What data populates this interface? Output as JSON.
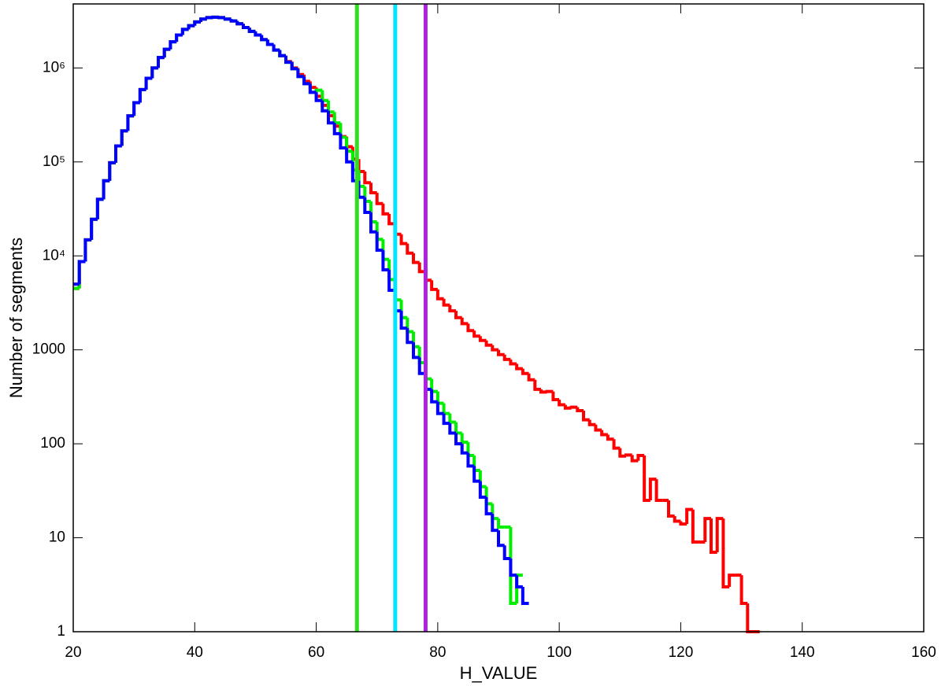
{
  "chart_data": {
    "type": "histogram",
    "x_label": "H_VALUE",
    "y_label": "Number of segments",
    "log_y": true,
    "bins": [
      20,
      21,
      22,
      23,
      24,
      25,
      26,
      27,
      28,
      29,
      30,
      31,
      32,
      33,
      34,
      35,
      36,
      37,
      38,
      39,
      40,
      41,
      42,
      43,
      44,
      45,
      46,
      47,
      48,
      49,
      50,
      51,
      52,
      53,
      54,
      55,
      56,
      57,
      58,
      59,
      60,
      61,
      62,
      63,
      64,
      65,
      66,
      67,
      68,
      69,
      70,
      71,
      72,
      73,
      74,
      75,
      76,
      77,
      78,
      79,
      80,
      81,
      82,
      83,
      84,
      85,
      86,
      87,
      88,
      89,
      90,
      91,
      92,
      93,
      94,
      95,
      96,
      97,
      98,
      99,
      100,
      101,
      102,
      103,
      104,
      105,
      106,
      107,
      108,
      109,
      110,
      111,
      112,
      113,
      114,
      115,
      116,
      117,
      118,
      119,
      120,
      121,
      122,
      123,
      124,
      125,
      126,
      127,
      128,
      129,
      130,
      131,
      132,
      133
    ],
    "series": [
      {
        "color": "#ff0000",
        "values": [
          4500,
          8700,
          14800,
          24500,
          40000,
          63000,
          98000,
          148000,
          214000,
          309000,
          427000,
          589000,
          776000,
          1000000,
          1290000,
          1580000,
          1900000,
          2240000,
          2570000,
          2820000,
          3090000,
          3310000,
          3430000,
          3470000,
          3430000,
          3310000,
          3160000,
          2950000,
          2690000,
          2450000,
          2240000,
          2000000,
          1780000,
          1550000,
          1350000,
          1170000,
          1000000,
          850000,
          720000,
          620000,
          500000,
          400000,
          310000,
          240000,
          186000,
          145000,
          107000,
          79000,
          60000,
          47000,
          36000,
          28000,
          22000,
          17000,
          13500,
          10700,
          8500,
          6800,
          5500,
          4400,
          3500,
          3000,
          2600,
          2200,
          1900,
          1600,
          1400,
          1260,
          1120,
          1000,
          890,
          790,
          710,
          630,
          560,
          480,
          380,
          355,
          360,
          295,
          260,
          240,
          245,
          225,
          180,
          160,
          140,
          125,
          112,
          90,
          74,
          76,
          66,
          75,
          25,
          42,
          25,
          25,
          17,
          15,
          14,
          20,
          9,
          9,
          16,
          7,
          16,
          3,
          4,
          4,
          2,
          1,
          1
        ]
      },
      {
        "color": "#00ee00",
        "values": [
          4500,
          8700,
          14800,
          24500,
          40000,
          63000,
          98000,
          148000,
          214000,
          309000,
          427000,
          589000,
          776000,
          1000000,
          1290000,
          1580000,
          1900000,
          2240000,
          2570000,
          2820000,
          3090000,
          3310000,
          3430000,
          3470000,
          3430000,
          3310000,
          3160000,
          2950000,
          2690000,
          2450000,
          2240000,
          2000000,
          1780000,
          1550000,
          1350000,
          1150000,
          980000,
          810000,
          680000,
          550000,
          580000,
          450000,
          340000,
          260000,
          183000,
          130000,
          82000,
          55000,
          38000,
          23000,
          15000,
          9200,
          5600,
          3400,
          2200,
          1560,
          1080,
          730,
          490,
          360,
          270,
          210,
          170,
          130,
          104,
          75,
          52,
          35,
          23,
          16,
          13,
          13,
          2,
          4,
          null,
          null,
          null,
          null,
          null,
          null,
          null,
          null,
          null,
          null,
          null,
          null,
          null,
          null,
          null,
          null,
          null,
          null,
          null,
          null,
          null,
          null,
          null,
          null,
          null,
          null,
          null,
          null,
          null,
          null,
          null,
          null,
          null,
          null,
          null,
          null,
          null,
          null,
          null
        ]
      },
      {
        "color": "#0000ff",
        "values": [
          5000,
          8700,
          14800,
          24500,
          40000,
          63000,
          98000,
          148000,
          214000,
          309000,
          427000,
          589000,
          776000,
          1000000,
          1290000,
          1580000,
          1900000,
          2240000,
          2570000,
          2820000,
          3090000,
          3310000,
          3430000,
          3470000,
          3430000,
          3310000,
          3160000,
          2950000,
          2690000,
          2450000,
          2240000,
          2000000,
          1780000,
          1550000,
          1350000,
          1150000,
          980000,
          810000,
          680000,
          550000,
          450000,
          350000,
          260000,
          200000,
          141000,
          100000,
          63000,
          42000,
          29000,
          18000,
          11500,
          7100,
          4300,
          2600,
          1700,
          1200,
          830,
          560,
          380,
          280,
          210,
          165,
          130,
          100,
          80,
          58,
          40,
          27,
          18,
          12,
          8.3,
          6,
          4,
          3,
          2,
          null,
          null,
          null,
          null,
          null,
          null,
          null,
          null,
          null,
          null,
          null,
          null,
          null,
          null,
          null,
          null,
          null,
          null,
          null,
          null,
          null,
          null,
          null,
          null,
          null,
          null,
          null,
          null,
          null,
          null,
          null,
          null,
          null,
          null,
          null,
          null,
          null,
          null
        ]
      }
    ],
    "vlines": [
      {
        "x": 66.7,
        "color": "#33dd22"
      },
      {
        "x": 73,
        "color": "#00e5ff"
      },
      {
        "x": 78,
        "color": "#aa22dd"
      }
    ],
    "xlim": [
      20,
      160
    ],
    "xticks": [
      20,
      40,
      60,
      80,
      100,
      120,
      140,
      160
    ],
    "ylim": [
      1,
      4800000
    ],
    "yticks": [
      1,
      10,
      100,
      1000,
      {
        "value": 10000,
        "label": "10⁴"
      },
      {
        "value": 100000,
        "label": "10⁵"
      },
      {
        "value": 1000000,
        "label": "10⁶"
      }
    ]
  }
}
